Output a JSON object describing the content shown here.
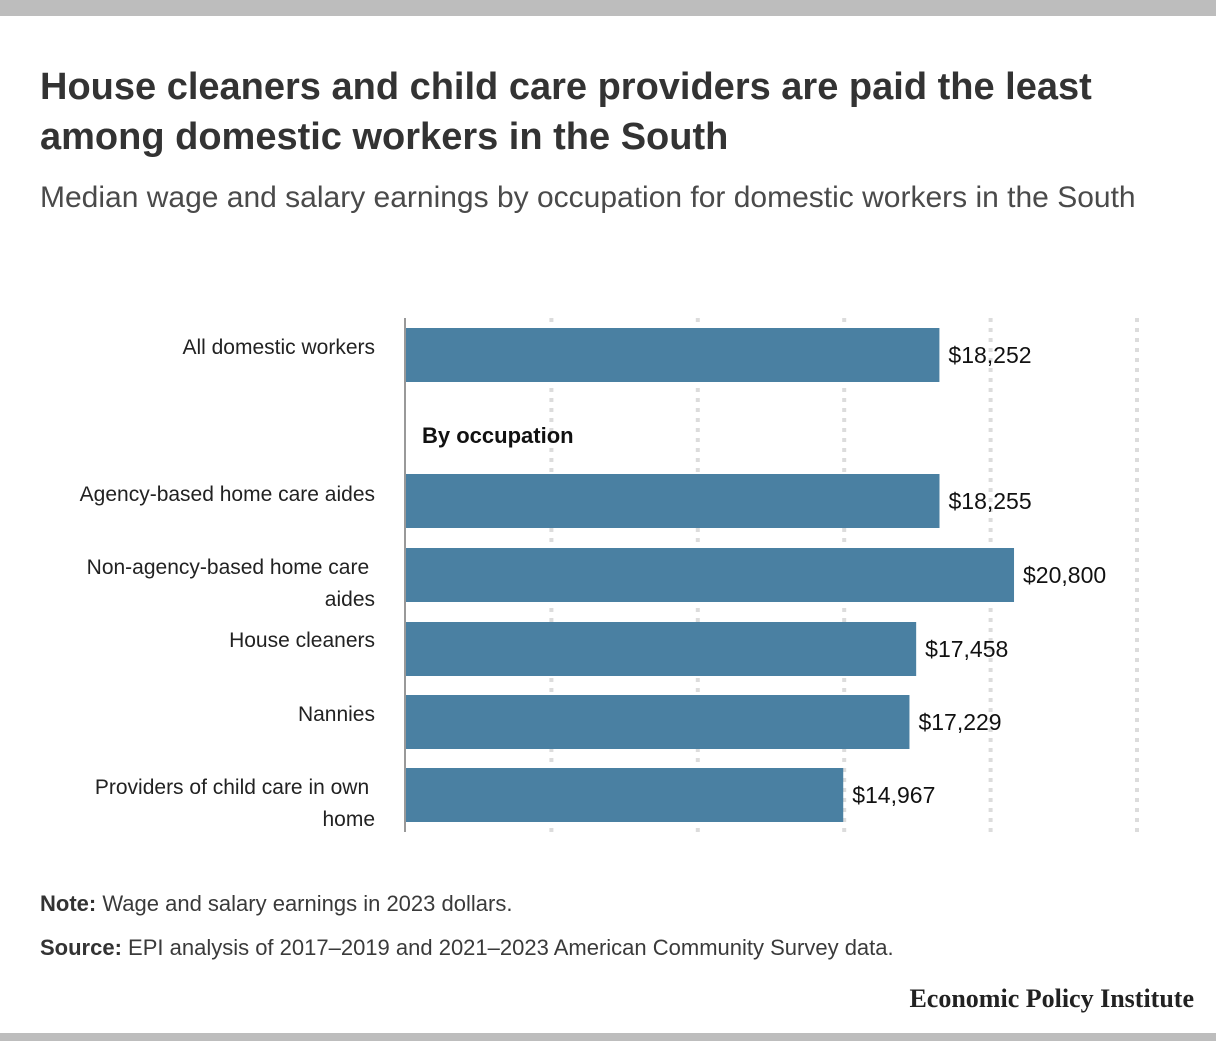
{
  "header": {
    "title": "House cleaners and child care providers are paid the least among domestic workers in the South",
    "subtitle": "Median wage and salary earnings by occupation for domestic workers in the South"
  },
  "chart_data": {
    "type": "bar",
    "orientation": "horizontal",
    "categories": [
      "All domestic workers",
      "Agency-based home care aides",
      "Non-agency-based home care aides",
      "House cleaners",
      "Nannies",
      "Providers of child care in own home"
    ],
    "values": [
      18252,
      18255,
      20800,
      17458,
      17229,
      14967
    ],
    "value_labels": [
      "$18,252",
      "$18,255",
      "$20,800",
      "$17,458",
      "$17,229",
      "$14,967"
    ],
    "group_label": "By occupation",
    "xlim": [
      0,
      25000
    ],
    "grid": true,
    "bar_color": "#4a80a2"
  },
  "footer": {
    "note_label": "Note:",
    "note_text": " Wage and salary earnings in 2023 dollars.",
    "source_label": "Source:",
    "source_text": " EPI analysis of 2017–2019 and 2021–2023 American Community Survey data.",
    "brand": "Economic Policy Institute"
  }
}
